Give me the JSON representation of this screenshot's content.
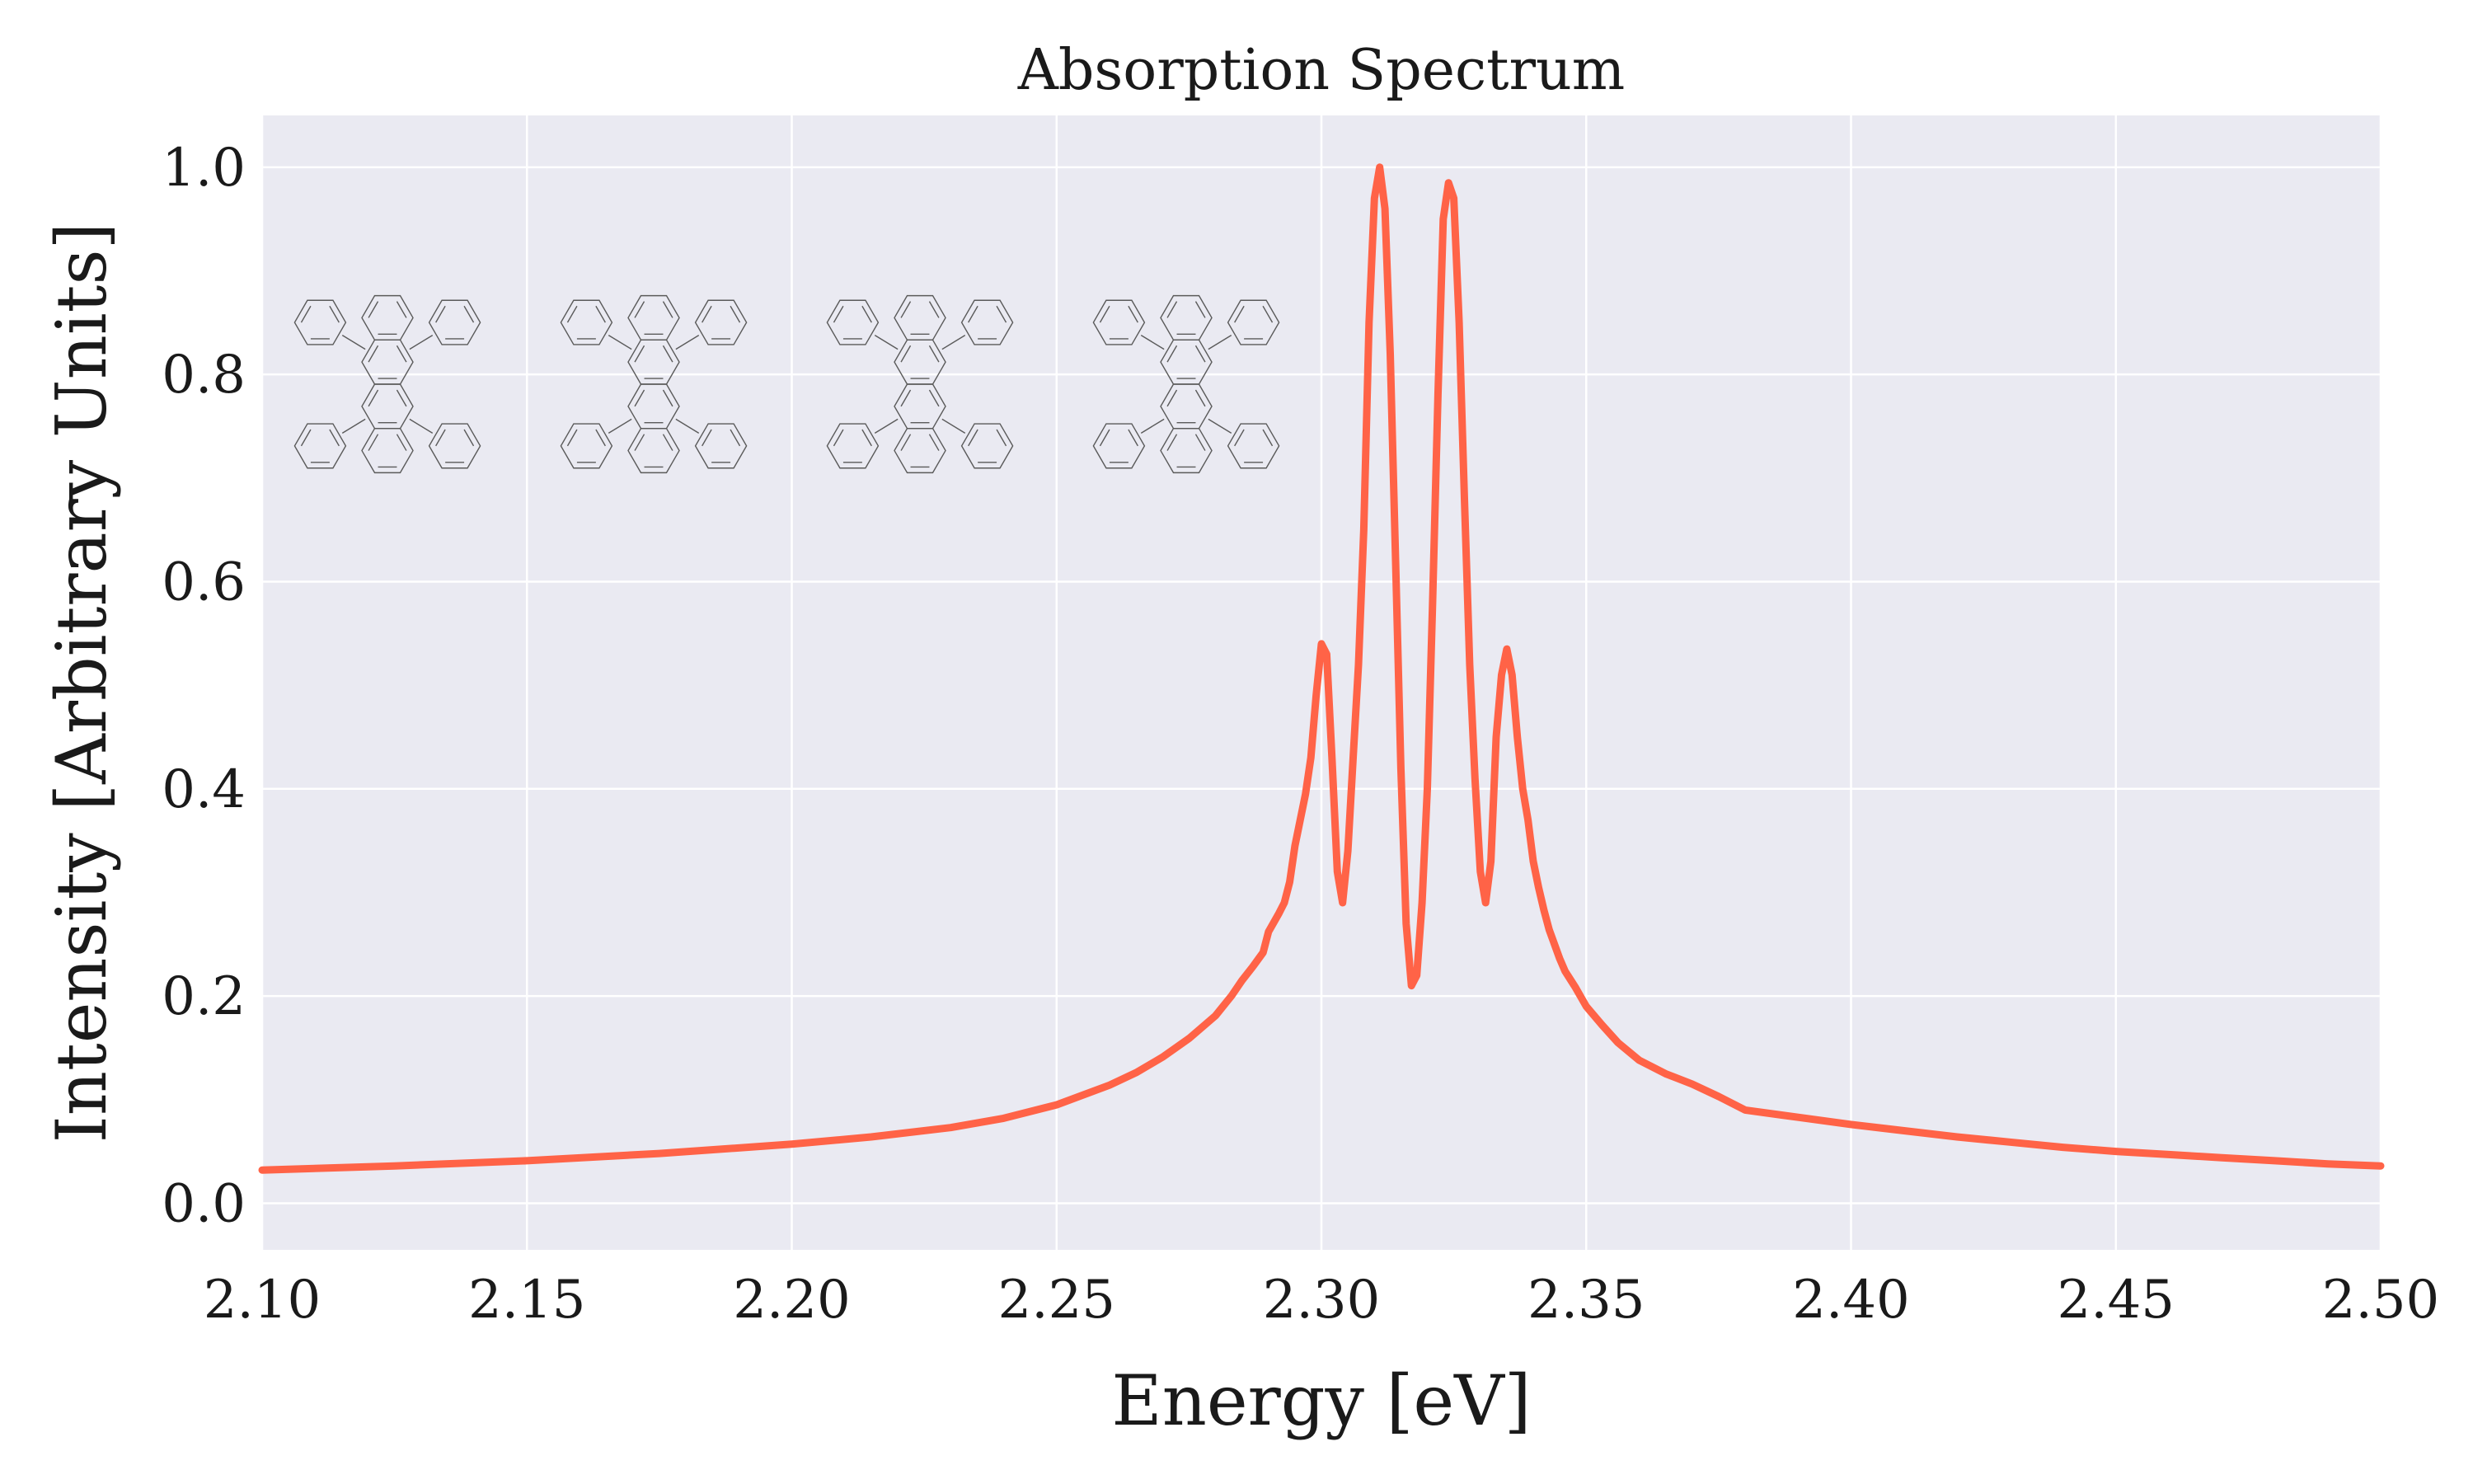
{
  "colors": {
    "plot_background": "#eaeaf2",
    "grid": "#ffffff",
    "series": "#ff6347",
    "molecule": "#5a5a5a"
  },
  "chart_data": {
    "type": "line",
    "title": "Absorption Spectrum",
    "xlabel": "Energy [eV]",
    "ylabel": "Intensity [Arbitrary Units]",
    "xlim": [
      2.1,
      2.5
    ],
    "ylim": [
      -0.045,
      1.05
    ],
    "xticks": [
      2.1,
      2.15,
      2.2,
      2.25,
      2.3,
      2.35,
      2.4,
      2.45,
      2.5
    ],
    "xtick_labels": [
      "2.10",
      "2.15",
      "2.20",
      "2.25",
      "2.30",
      "2.35",
      "2.40",
      "2.45",
      "2.50"
    ],
    "yticks": [
      0.0,
      0.2,
      0.4,
      0.6,
      0.8,
      1.0
    ],
    "ytick_labels": [
      "0.0",
      "0.2",
      "0.4",
      "0.6",
      "0.8",
      "1.0"
    ],
    "grid": true,
    "series": [
      {
        "name": "Absorption",
        "color": "#ff6347",
        "x": [
          2.1,
          2.125,
          2.15,
          2.175,
          2.2,
          2.215,
          2.23,
          2.24,
          2.25,
          2.26,
          2.265,
          2.27,
          2.275,
          2.28,
          2.283,
          2.285,
          2.287,
          2.289,
          2.29,
          2.292,
          2.293,
          2.294,
          2.295,
          2.296,
          2.297,
          2.298,
          2.299,
          2.3,
          2.301,
          2.302,
          2.303,
          2.304,
          2.305,
          2.306,
          2.307,
          2.308,
          2.309,
          2.31,
          2.311,
          2.312,
          2.313,
          2.314,
          2.315,
          2.316,
          2.317,
          2.318,
          2.319,
          2.32,
          2.321,
          2.322,
          2.323,
          2.324,
          2.325,
          2.326,
          2.327,
          2.328,
          2.329,
          2.33,
          2.331,
          2.332,
          2.333,
          2.334,
          2.335,
          2.336,
          2.337,
          2.338,
          2.339,
          2.34,
          2.341,
          2.342,
          2.343,
          2.344,
          2.345,
          2.346,
          2.348,
          2.35,
          2.353,
          2.356,
          2.36,
          2.365,
          2.37,
          2.375,
          2.38,
          2.39,
          2.4,
          2.41,
          2.42,
          2.43,
          2.44,
          2.45,
          2.46,
          2.47,
          2.48,
          2.49,
          2.5
        ],
        "y": [
          0.032,
          0.036,
          0.041,
          0.048,
          0.057,
          0.064,
          0.073,
          0.082,
          0.095,
          0.114,
          0.126,
          0.141,
          0.159,
          0.181,
          0.2,
          0.215,
          0.228,
          0.242,
          0.262,
          0.28,
          0.29,
          0.31,
          0.345,
          0.37,
          0.395,
          0.43,
          0.49,
          0.54,
          0.53,
          0.43,
          0.32,
          0.29,
          0.34,
          0.43,
          0.52,
          0.65,
          0.85,
          0.97,
          1.0,
          0.96,
          0.82,
          0.62,
          0.42,
          0.27,
          0.21,
          0.22,
          0.29,
          0.4,
          0.58,
          0.78,
          0.95,
          0.985,
          0.97,
          0.85,
          0.68,
          0.52,
          0.41,
          0.32,
          0.29,
          0.33,
          0.45,
          0.51,
          0.535,
          0.51,
          0.45,
          0.4,
          0.37,
          0.33,
          0.305,
          0.283,
          0.264,
          0.25,
          0.236,
          0.224,
          0.208,
          0.19,
          0.172,
          0.155,
          0.138,
          0.125,
          0.115,
          0.103,
          0.09,
          0.083,
          0.076,
          0.07,
          0.064,
          0.059,
          0.054,
          0.05,
          0.047,
          0.044,
          0.041,
          0.038,
          0.036
        ]
      }
    ],
    "annotations": [
      {
        "type": "molecule-structure",
        "name": "tetraphenyl-dibenzotetracene-1"
      },
      {
        "type": "molecule-structure",
        "name": "tetraphenyl-dibenzotetracene-2"
      },
      {
        "type": "molecule-structure",
        "name": "tetraphenyl-dibenzotetracene-3"
      },
      {
        "type": "molecule-structure",
        "name": "tetraphenyl-dibenzotetracene-4"
      }
    ]
  }
}
